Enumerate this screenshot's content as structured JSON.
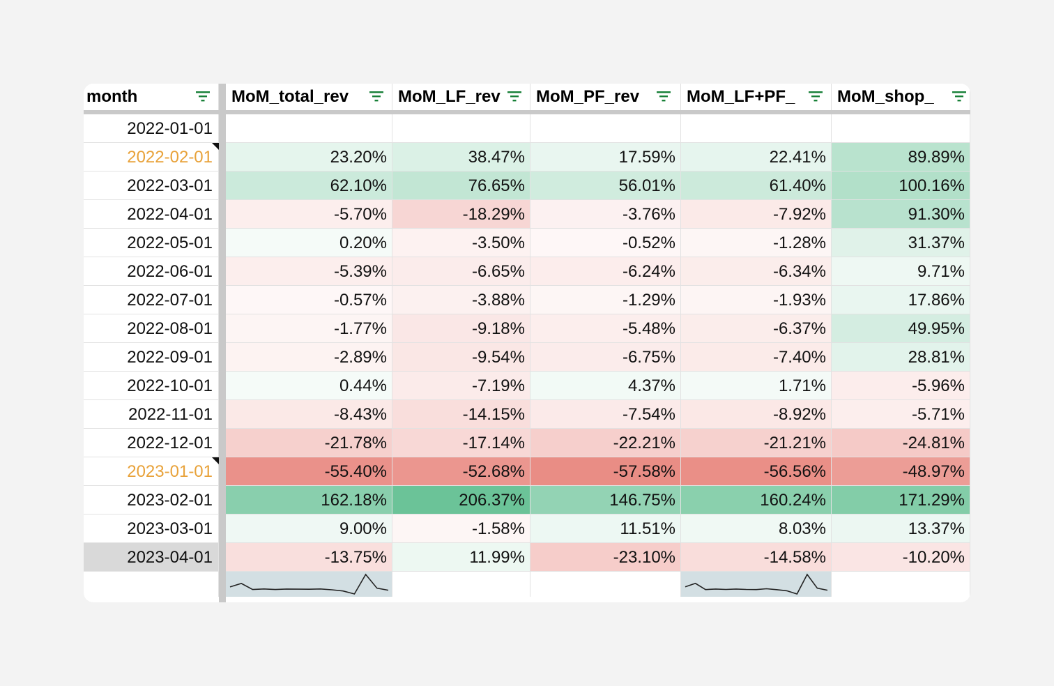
{
  "headers": [
    {
      "label": "month"
    },
    {
      "label": "MoM_total_rev"
    },
    {
      "label": "MoM_LF_rev"
    },
    {
      "label": "MoM_PF_rev"
    },
    {
      "label": "MoM_LF+PF_"
    },
    {
      "label": "MoM_shop_"
    }
  ],
  "rows": [
    {
      "date": "2022-01-01",
      "values": [
        "",
        "",
        "",
        "",
        ""
      ]
    },
    {
      "date": "2022-02-01",
      "has_note": true,
      "values": [
        "23.20%",
        "38.47%",
        "17.59%",
        "22.41%",
        "89.89%"
      ]
    },
    {
      "date": "2022-03-01",
      "values": [
        "62.10%",
        "76.65%",
        "56.01%",
        "61.40%",
        "100.16%"
      ]
    },
    {
      "date": "2022-04-01",
      "values": [
        "-5.70%",
        "-18.29%",
        "-3.76%",
        "-7.92%",
        "91.30%"
      ]
    },
    {
      "date": "2022-05-01",
      "values": [
        "0.20%",
        "-3.50%",
        "-0.52%",
        "-1.28%",
        "31.37%"
      ]
    },
    {
      "date": "2022-06-01",
      "values": [
        "-5.39%",
        "-6.65%",
        "-6.24%",
        "-6.34%",
        "9.71%"
      ]
    },
    {
      "date": "2022-07-01",
      "values": [
        "-0.57%",
        "-3.88%",
        "-1.29%",
        "-1.93%",
        "17.86%"
      ]
    },
    {
      "date": "2022-08-01",
      "values": [
        "-1.77%",
        "-9.18%",
        "-5.48%",
        "-6.37%",
        "49.95%"
      ]
    },
    {
      "date": "2022-09-01",
      "values": [
        "-2.89%",
        "-9.54%",
        "-6.75%",
        "-7.40%",
        "28.81%"
      ]
    },
    {
      "date": "2022-10-01",
      "values": [
        "0.44%",
        "-7.19%",
        "4.37%",
        "1.71%",
        "-5.96%"
      ]
    },
    {
      "date": "2022-11-01",
      "values": [
        "-8.43%",
        "-14.15%",
        "-7.54%",
        "-8.92%",
        "-5.71%"
      ]
    },
    {
      "date": "2022-12-01",
      "values": [
        "-21.78%",
        "-17.14%",
        "-22.21%",
        "-21.21%",
        "-24.81%"
      ]
    },
    {
      "date": "2023-01-01",
      "has_note": true,
      "values": [
        "-55.40%",
        "-52.68%",
        "-57.58%",
        "-56.56%",
        "-48.97%"
      ]
    },
    {
      "date": "2023-02-01",
      "values": [
        "162.18%",
        "206.37%",
        "146.75%",
        "160.24%",
        "171.29%"
      ]
    },
    {
      "date": "2023-03-01",
      "values": [
        "9.00%",
        "-1.58%",
        "11.51%",
        "8.03%",
        "13.37%"
      ]
    },
    {
      "date": "2023-04-01",
      "selected": true,
      "values": [
        "-13.75%",
        "11.99%",
        "-23.10%",
        "-14.58%",
        "-10.20%"
      ]
    }
  ],
  "sparklines": [
    {
      "column": "MoM_total_rev",
      "values": [
        23.2,
        62.1,
        -5.7,
        0.2,
        -5.39,
        -0.57,
        -1.77,
        -2.89,
        0.44,
        -8.43,
        -21.78,
        -55.4,
        162.18,
        9.0,
        -13.75
      ]
    },
    {
      "column": "MoM_LF+PF_",
      "values": [
        22.41,
        61.4,
        -7.92,
        -1.28,
        -6.34,
        -1.93,
        -6.37,
        -7.4,
        1.71,
        -8.92,
        -21.21,
        -56.56,
        160.24,
        8.03,
        -14.58
      ]
    }
  ],
  "colors": {
    "accent_date": "#e8a23a",
    "positive": "#57bb8a",
    "negative": "#e67c73",
    "sparkline_bg": "#d3dfe3",
    "filter_icon": "#188038"
  },
  "icons": {
    "filter": "filter-icon",
    "note": "note-indicator"
  }
}
